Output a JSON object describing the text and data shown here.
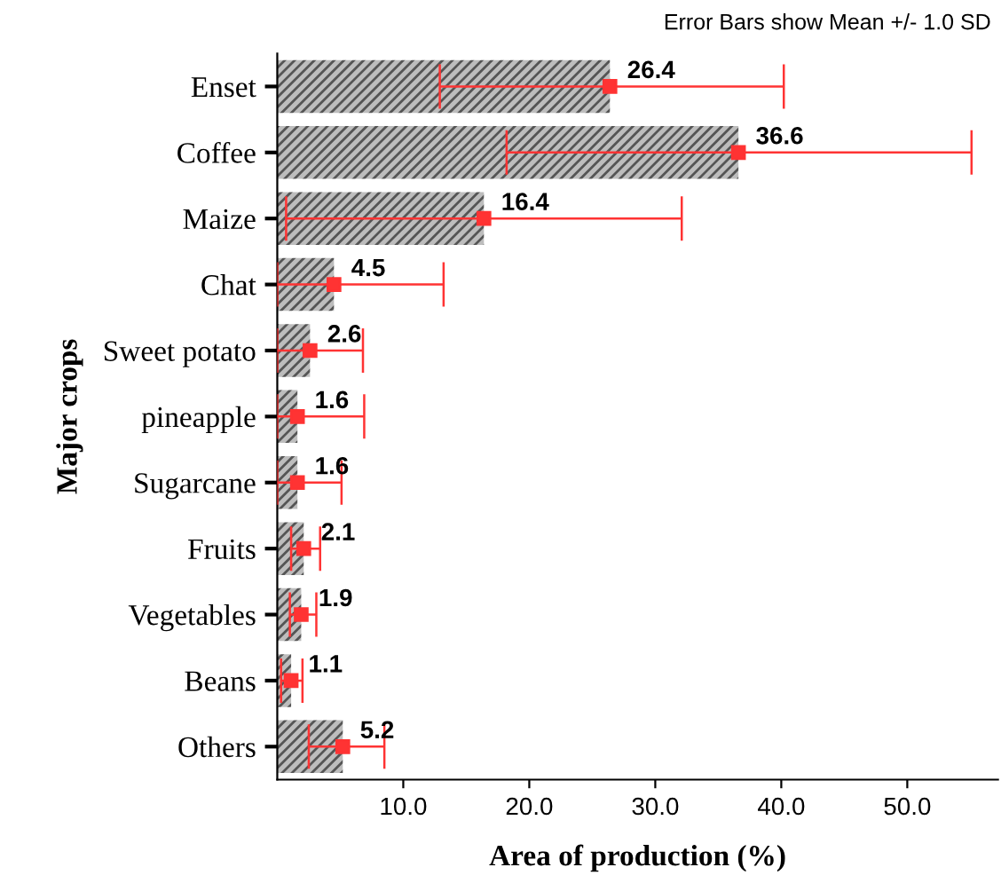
{
  "chart_data": {
    "type": "bar",
    "orientation": "horizontal",
    "xlabel": "Area of production (%)",
    "ylabel": "Major crops",
    "annotations": [
      "Error Bars show Mean +/- 1.0 SD"
    ],
    "categories": [
      "Enset",
      "Coffee",
      "Maize",
      "Chat",
      "Sweet potato",
      "pineapple",
      "Sugarcane",
      "Fruits",
      "Vegetables",
      "Beans",
      "Others"
    ],
    "series": [
      {
        "type": "bar",
        "color": "#bdbdbd",
        "values": [
          26.4,
          36.6,
          16.4,
          4.5,
          2.6,
          1.6,
          1.6,
          2.1,
          1.9,
          1.1,
          5.2
        ]
      },
      {
        "type": "scatter",
        "color": "#ff3333",
        "x": [
          "Enset",
          "Coffee",
          "Maize",
          "Chat",
          "Sweet potato",
          "pineapple",
          "Sugarcane",
          "Fruits",
          "Vegetables",
          "Beans",
          "Others"
        ],
        "values": [
          26.4,
          36.6,
          16.4,
          4.5,
          2.6,
          1.6,
          1.6,
          2.1,
          1.9,
          1.1,
          5.2
        ],
        "value_labels": [
          "26.4",
          "36.6",
          "16.4",
          "4.5",
          "2.6",
          "1.6",
          "1.6",
          "2.1",
          "1.9",
          "1.1",
          "5.2"
        ],
        "errors": [
          [
            12.9,
            40.2
          ],
          [
            18.2,
            55.1
          ],
          [
            0.7,
            32.1
          ],
          [
            0,
            13.2
          ],
          [
            0,
            6.8
          ],
          [
            0,
            6.9
          ],
          [
            0,
            5.1
          ],
          [
            1.1,
            3.4
          ],
          [
            1.0,
            3.1
          ],
          [
            0.3,
            2.0
          ],
          [
            2.5,
            8.5
          ]
        ]
      }
    ],
    "marker": "square",
    "grid": false,
    "xlim": [
      0,
      57.2
    ],
    "xticks": [
      {
        "value": 10,
        "label": "10.0"
      },
      {
        "value": 20,
        "label": "20.0"
      },
      {
        "value": 30,
        "label": "30.0"
      },
      {
        "value": 40,
        "label": "40.0"
      },
      {
        "value": 50,
        "label": "50.0"
      }
    ]
  }
}
